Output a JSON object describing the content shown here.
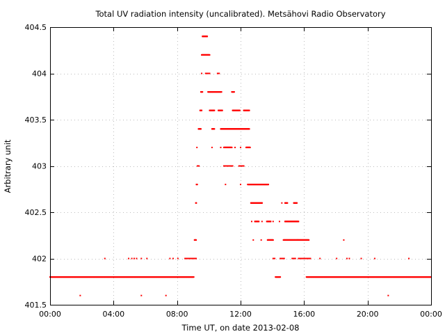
{
  "chart_data": {
    "type": "scatter",
    "title": "Total UV radiation intensity (uncalibrated). Metsähovi Radio Observatory",
    "xlabel": "Time UT, on date 2013-02-08",
    "ylabel": "Arbitrary unit",
    "x_unit": "hours",
    "xlim": [
      0,
      24
    ],
    "ylim": [
      401.5,
      404.5
    ],
    "x_ticks": [
      {
        "value": 0,
        "label": "00:00"
      },
      {
        "value": 4,
        "label": "04:00"
      },
      {
        "value": 8,
        "label": "08:00"
      },
      {
        "value": 12,
        "label": "12:00"
      },
      {
        "value": 16,
        "label": "16:00"
      },
      {
        "value": 20,
        "label": "20:00"
      },
      {
        "value": 24,
        "label": "00:00"
      }
    ],
    "y_ticks": [
      {
        "value": 401.5,
        "label": "401.5"
      },
      {
        "value": 402,
        "label": "402"
      },
      {
        "value": 402.5,
        "label": "402.5"
      },
      {
        "value": 403,
        "label": "403"
      },
      {
        "value": 403.5,
        "label": "403.5"
      },
      {
        "value": 404,
        "label": "404"
      },
      {
        "value": 404.5,
        "label": "404.5"
      }
    ],
    "grid": true,
    "marker_color": "#ff0000",
    "segments": [
      {
        "y": 401.8,
        "x_start": 0.0,
        "x_end": 9.05
      },
      {
        "y": 402.0,
        "x_start": 8.5,
        "x_end": 9.2
      },
      {
        "y": 402.2,
        "x_start": 9.1,
        "x_end": 9.2
      },
      {
        "y": 402.6,
        "x_start": 9.18,
        "x_end": 9.22
      },
      {
        "y": 402.8,
        "x_start": 9.22,
        "x_end": 9.28
      },
      {
        "y": 403.0,
        "x_start": 9.28,
        "x_end": 9.38
      },
      {
        "y": 403.4,
        "x_start": 9.35,
        "x_end": 9.5
      },
      {
        "y": 403.6,
        "x_start": 9.45,
        "x_end": 9.55
      },
      {
        "y": 403.8,
        "x_start": 9.5,
        "x_end": 9.6
      },
      {
        "y": 404.2,
        "x_start": 9.55,
        "x_end": 10.05
      },
      {
        "y": 404.4,
        "x_start": 9.6,
        "x_end": 9.9
      },
      {
        "y": 404.0,
        "x_start": 9.8,
        "x_end": 10.05
      },
      {
        "y": 403.8,
        "x_start": 9.95,
        "x_end": 10.8
      },
      {
        "y": 404.0,
        "x_start": 10.55,
        "x_end": 10.65
      },
      {
        "y": 403.6,
        "x_start": 10.05,
        "x_end": 10.35
      },
      {
        "y": 403.6,
        "x_start": 10.6,
        "x_end": 10.85
      },
      {
        "y": 403.4,
        "x_start": 10.2,
        "x_end": 10.35
      },
      {
        "y": 403.4,
        "x_start": 10.75,
        "x_end": 12.55
      },
      {
        "y": 403.2,
        "x_start": 10.95,
        "x_end": 11.45
      },
      {
        "y": 403.0,
        "x_start": 10.95,
        "x_end": 11.5
      },
      {
        "y": 403.8,
        "x_start": 11.45,
        "x_end": 11.6
      },
      {
        "y": 403.6,
        "x_start": 11.5,
        "x_end": 11.95
      },
      {
        "y": 403.6,
        "x_start": 12.2,
        "x_end": 12.55
      },
      {
        "y": 403.0,
        "x_start": 11.9,
        "x_end": 12.2
      },
      {
        "y": 403.2,
        "x_start": 12.35,
        "x_end": 12.6
      },
      {
        "y": 402.8,
        "x_start": 12.45,
        "x_end": 13.75
      },
      {
        "y": 402.6,
        "x_start": 12.65,
        "x_end": 13.35
      },
      {
        "y": 402.4,
        "x_start": 12.9,
        "x_end": 13.15
      },
      {
        "y": 402.4,
        "x_start": 13.65,
        "x_end": 13.9
      },
      {
        "y": 402.2,
        "x_start": 13.7,
        "x_end": 14.05
      },
      {
        "y": 401.8,
        "x_start": 14.2,
        "x_end": 14.5
      },
      {
        "y": 402.0,
        "x_start": 14.05,
        "x_end": 14.15
      },
      {
        "y": 402.0,
        "x_start": 14.5,
        "x_end": 14.75
      },
      {
        "y": 402.0,
        "x_start": 15.25,
        "x_end": 15.45
      },
      {
        "y": 402.2,
        "x_start": 14.7,
        "x_end": 16.3
      },
      {
        "y": 402.4,
        "x_start": 14.8,
        "x_end": 15.65
      },
      {
        "y": 402.6,
        "x_start": 14.8,
        "x_end": 14.95
      },
      {
        "y": 402.6,
        "x_start": 15.35,
        "x_end": 15.55
      },
      {
        "y": 402.0,
        "x_start": 15.65,
        "x_end": 16.4
      },
      {
        "y": 401.8,
        "x_start": 16.15,
        "x_end": 24.0
      }
    ],
    "points": [
      {
        "x": 1.9,
        "y": 401.6
      },
      {
        "x": 3.45,
        "y": 402.0
      },
      {
        "x": 4.95,
        "y": 402.0
      },
      {
        "x": 5.15,
        "y": 402.0
      },
      {
        "x": 5.3,
        "y": 402.0
      },
      {
        "x": 5.45,
        "y": 402.0
      },
      {
        "x": 5.75,
        "y": 401.6
      },
      {
        "x": 5.75,
        "y": 402.0
      },
      {
        "x": 6.1,
        "y": 402.0
      },
      {
        "x": 7.3,
        "y": 401.6
      },
      {
        "x": 7.55,
        "y": 402.0
      },
      {
        "x": 7.75,
        "y": 402.0
      },
      {
        "x": 8.05,
        "y": 402.0
      },
      {
        "x": 9.25,
        "y": 403.2
      },
      {
        "x": 9.55,
        "y": 404.0
      },
      {
        "x": 10.2,
        "y": 403.2
      },
      {
        "x": 10.75,
        "y": 403.2
      },
      {
        "x": 11.05,
        "y": 402.8
      },
      {
        "x": 12.0,
        "y": 402.8
      },
      {
        "x": 11.65,
        "y": 403.2
      },
      {
        "x": 12.0,
        "y": 403.2
      },
      {
        "x": 12.7,
        "y": 402.4
      },
      {
        "x": 12.8,
        "y": 402.2
      },
      {
        "x": 13.3,
        "y": 402.2
      },
      {
        "x": 13.35,
        "y": 402.4
      },
      {
        "x": 13.35,
        "y": 402.6
      },
      {
        "x": 14.05,
        "y": 402.4
      },
      {
        "x": 14.45,
        "y": 402.4
      },
      {
        "x": 14.6,
        "y": 402.6
      },
      {
        "x": 15.6,
        "y": 402.2
      },
      {
        "x": 17.0,
        "y": 402.0
      },
      {
        "x": 18.05,
        "y": 402.0
      },
      {
        "x": 18.5,
        "y": 402.2
      },
      {
        "x": 18.7,
        "y": 402.0
      },
      {
        "x": 18.85,
        "y": 402.0
      },
      {
        "x": 19.6,
        "y": 402.0
      },
      {
        "x": 20.45,
        "y": 402.0
      },
      {
        "x": 21.3,
        "y": 401.6
      },
      {
        "x": 22.6,
        "y": 402.0
      }
    ]
  }
}
